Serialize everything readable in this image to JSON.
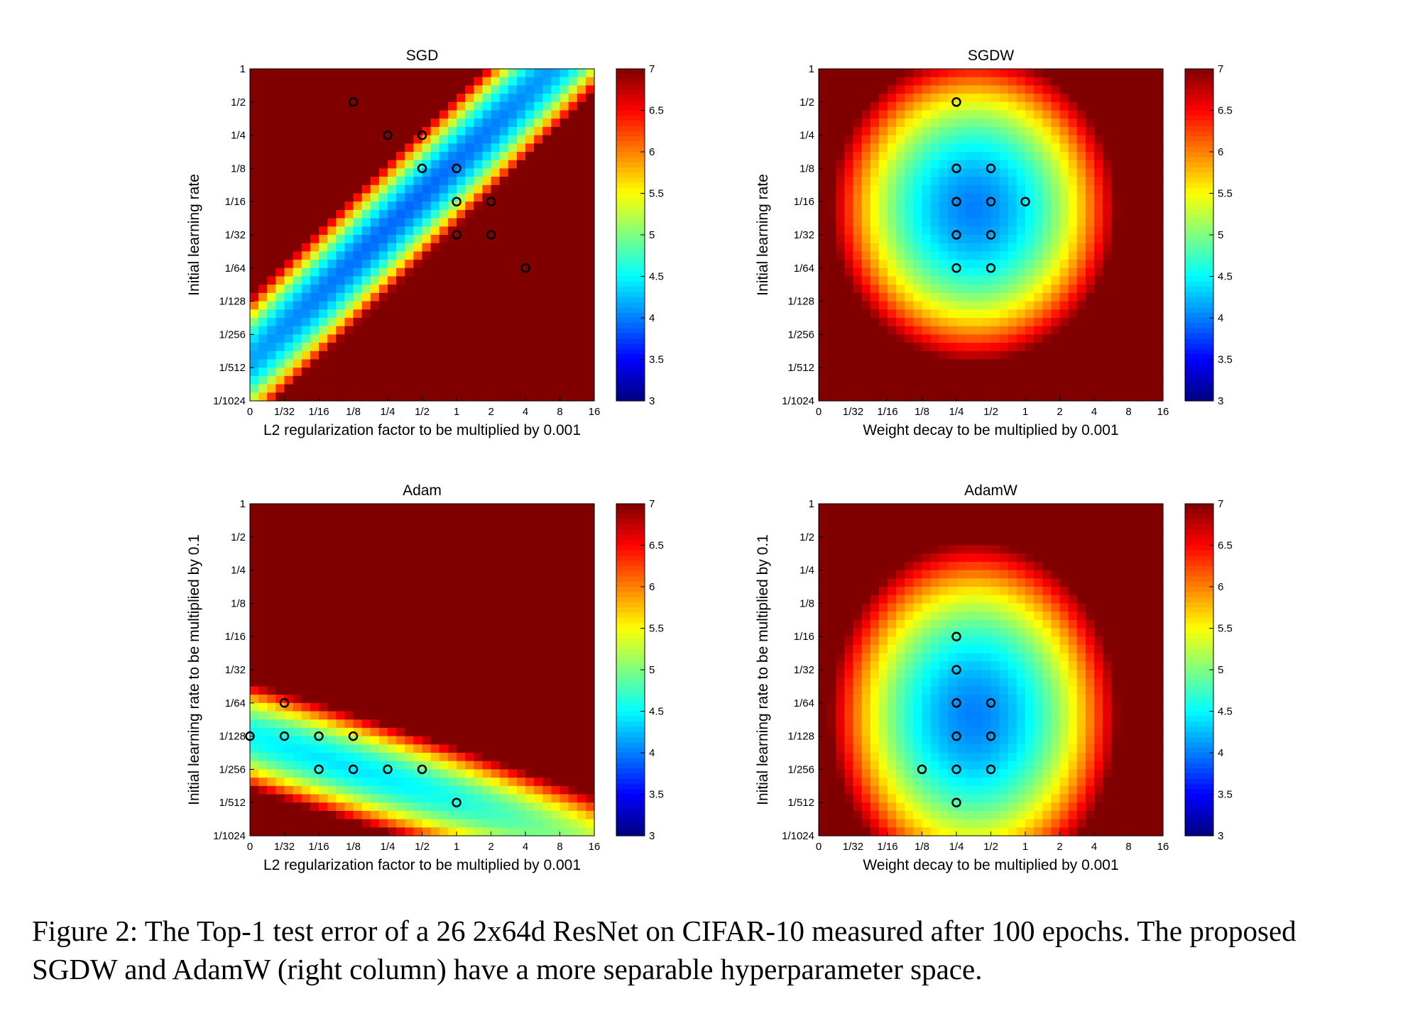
{
  "caption": "Figure 2:   The Top-1 test error of a 26 2x64d ResNet on CIFAR-10 measured after 100 epochs. The proposed SGDW and AdamW (right column) have a more separable hyperparameter space.",
  "colorbar": {
    "ticks": [
      "3",
      "3.5",
      "4",
      "4.5",
      "5",
      "5.5",
      "6",
      "6.5",
      "7"
    ],
    "min": 3,
    "max": 7
  },
  "chart_data": [
    {
      "type": "heatmap",
      "title": "SGD",
      "xlabel": "L2 regularization factor to be multiplied by 0.001",
      "ylabel": "Initial learning rate",
      "x_ticks": [
        "0",
        "1/32",
        "1/16",
        "1/8",
        "1/4",
        "1/2",
        "1",
        "2",
        "4",
        "8",
        "16"
      ],
      "y_ticks": [
        "1",
        "1/2",
        "1/4",
        "1/8",
        "1/16",
        "1/32",
        "1/64",
        "1/128",
        "1/256",
        "1/512",
        "1/1024"
      ],
      "colorbar_range": [
        3,
        7
      ],
      "base": {
        "center": [
          4.5,
          4.3
        ],
        "slope": -1.0,
        "width": 1.3,
        "scale": 0.75,
        "min": 3.9,
        "rate": 1.35
      },
      "markers": [
        [
          "1/8",
          "1/2"
        ],
        [
          "1/4",
          "1/4"
        ],
        [
          "1/2",
          "1/4"
        ],
        [
          "1/2",
          "1/8"
        ],
        [
          "1",
          "1/8"
        ],
        [
          "1",
          "1/16"
        ],
        [
          "2",
          "1/16"
        ],
        [
          "1",
          "1/32"
        ],
        [
          "2",
          "1/32"
        ],
        [
          "4",
          "1/64"
        ]
      ]
    },
    {
      "type": "heatmap",
      "title": "SGDW",
      "xlabel": "Weight decay to be multiplied by 0.001",
      "ylabel": "Initial learning rate",
      "x_ticks": [
        "0",
        "1/32",
        "1/16",
        "1/8",
        "1/4",
        "1/2",
        "1",
        "2",
        "4",
        "8",
        "16"
      ],
      "y_ticks": [
        "1",
        "1/2",
        "1/4",
        "1/8",
        "1/16",
        "1/32",
        "1/64",
        "1/128",
        "1/256",
        "1/512",
        "1/1024"
      ],
      "colorbar_range": [
        3,
        7
      ],
      "base": {
        "center": [
          4.5,
          4.2
        ],
        "rx": 3.4,
        "ry": 3.8,
        "min": 4.0,
        "rate": 2.1
      },
      "markers": [
        [
          "1/4",
          "1/2"
        ],
        [
          "1/4",
          "1/8"
        ],
        [
          "1/2",
          "1/8"
        ],
        [
          "1/4",
          "1/16"
        ],
        [
          "1/2",
          "1/16"
        ],
        [
          "1",
          "1/16"
        ],
        [
          "1/4",
          "1/32"
        ],
        [
          "1/2",
          "1/32"
        ],
        [
          "1/4",
          "1/64"
        ],
        [
          "1/2",
          "1/64"
        ]
      ]
    },
    {
      "type": "heatmap",
      "title": "Adam",
      "xlabel": "L2 regularization factor to be multiplied by 0.001",
      "ylabel": "Initial learning rate to be multiplied by 0.1",
      "x_ticks": [
        "0",
        "1/32",
        "1/16",
        "1/8",
        "1/4",
        "1/2",
        "1",
        "2",
        "4",
        "8",
        "16"
      ],
      "y_ticks": [
        "1",
        "1/2",
        "1/4",
        "1/8",
        "1/16",
        "1/32",
        "1/64",
        "1/128",
        "1/256",
        "1/512",
        "1/1024"
      ],
      "colorbar_range": [
        3,
        7
      ],
      "base": {
        "center": [
          2.5,
          7.8
        ],
        "slope": 0.32,
        "width": 1.1,
        "scale": 0.9,
        "min": 4.4,
        "rate": 1.2
      },
      "markers": [
        [
          "1/32",
          "1/64"
        ],
        [
          "0",
          "1/128"
        ],
        [
          "1/32",
          "1/128"
        ],
        [
          "1/16",
          "1/128"
        ],
        [
          "1/8",
          "1/128"
        ],
        [
          "1/16",
          "1/256"
        ],
        [
          "1/8",
          "1/256"
        ],
        [
          "1/4",
          "1/256"
        ],
        [
          "1/2",
          "1/256"
        ],
        [
          "1",
          "1/512"
        ]
      ]
    },
    {
      "type": "heatmap",
      "title": "AdamW",
      "xlabel": "Weight decay to be multiplied by 0.001",
      "ylabel": "Initial learning rate to be multiplied by 0.1",
      "x_ticks": [
        "0",
        "1/32",
        "1/16",
        "1/8",
        "1/4",
        "1/2",
        "1",
        "2",
        "4",
        "8",
        "16"
      ],
      "y_ticks": [
        "1",
        "1/2",
        "1/4",
        "1/8",
        "1/16",
        "1/32",
        "1/64",
        "1/128",
        "1/256",
        "1/512",
        "1/1024"
      ],
      "colorbar_range": [
        3,
        7
      ],
      "base": {
        "center": [
          4.5,
          6.4
        ],
        "rx": 3.5,
        "ry": 4.4,
        "min": 4.0,
        "rate": 2.2
      },
      "markers": [
        [
          "1/4",
          "1/16"
        ],
        [
          "1/4",
          "1/32"
        ],
        [
          "1/4",
          "1/64"
        ],
        [
          "1/2",
          "1/64"
        ],
        [
          "1/4",
          "1/128"
        ],
        [
          "1/2",
          "1/128"
        ],
        [
          "1/8",
          "1/256"
        ],
        [
          "1/4",
          "1/256"
        ],
        [
          "1/2",
          "1/256"
        ],
        [
          "1/4",
          "1/512"
        ]
      ]
    }
  ]
}
